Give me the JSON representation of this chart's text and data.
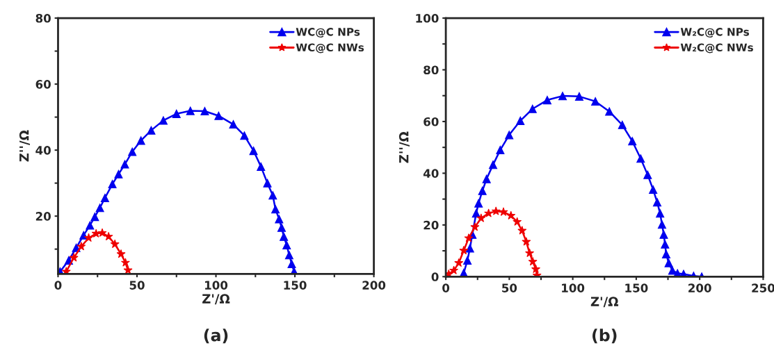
{
  "chart_data": [
    {
      "type": "line",
      "xlabel": "Z'/Ω",
      "ylabel": "Z''/Ω",
      "annotations": [
        "(a)"
      ],
      "xlim": [
        0,
        200
      ],
      "ylim": [
        2.5,
        80
      ],
      "xticks": [
        0,
        {
          "value": 25,
          "label": null
        },
        50,
        {
          "value": 75,
          "label": null
        },
        100,
        {
          "value": 125,
          "label": null
        },
        150,
        {
          "value": 175,
          "label": null
        },
        200
      ],
      "yticks": [
        {
          "value": 10,
          "label": null
        },
        20,
        {
          "value": 30,
          "label": null
        },
        40,
        {
          "value": 50,
          "label": null
        },
        60,
        {
          "value": 70,
          "label": null
        },
        80
      ],
      "grid": false,
      "legend": "top right",
      "line_style": "solid",
      "series": [
        {
          "name": "WC@C NPs",
          "color": "#0000ee",
          "marker": "triangle",
          "x": [
            1.3,
            6.8,
            11.5,
            16.2,
            20.2,
            23.3,
            26.5,
            29.7,
            34.4,
            38.3,
            42.3,
            47,
            52.5,
            59,
            66.7,
            75,
            83.8,
            92.9,
            101.7,
            111,
            118,
            123.8,
            128.5,
            132.6,
            136,
            137.7,
            140,
            141.6,
            143,
            144.8,
            146.4,
            148,
            149.5
          ],
          "values": [
            3.2,
            6.6,
            10.4,
            14.2,
            17.2,
            19.8,
            22.5,
            25.5,
            29.7,
            32.7,
            35.7,
            39.5,
            42.9,
            46,
            49,
            51,
            51.9,
            51.8,
            50.4,
            47.8,
            44.4,
            39.8,
            35,
            30,
            26.3,
            22.1,
            19.1,
            16.5,
            13.8,
            11.2,
            8.2,
            5.5,
            3.2
          ]
        },
        {
          "name": "WC@C NWs",
          "color": "#ee0000",
          "marker": "star",
          "x": [
            5.2,
            10,
            14.7,
            19.4,
            24.1,
            28,
            32,
            36,
            39.9,
            42.7,
            44.3
          ],
          "values": [
            3.2,
            7.4,
            10.8,
            13.4,
            14.7,
            14.9,
            13.8,
            11.5,
            8.5,
            5.9,
            3.6
          ]
        }
      ]
    },
    {
      "type": "line",
      "xlabel": "Z'/Ω",
      "ylabel": "Z''/Ω",
      "annotations": [
        "(b)"
      ],
      "xlim": [
        0,
        250
      ],
      "ylim": [
        0,
        100
      ],
      "xticks": [
        0,
        {
          "value": 25,
          "label": null
        },
        50,
        {
          "value": 75,
          "label": null
        },
        100,
        {
          "value": 125,
          "label": null
        },
        150,
        {
          "value": 175,
          "label": null
        },
        200,
        {
          "value": 225,
          "label": null
        },
        250
      ],
      "yticks": [
        0,
        {
          "value": 10,
          "label": null
        },
        20,
        {
          "value": 30,
          "label": null
        },
        40,
        {
          "value": 50,
          "label": null
        },
        60,
        {
          "value": 70,
          "label": null
        },
        80,
        {
          "value": 90,
          "label": null
        },
        100
      ],
      "grid": false,
      "legend": "top right",
      "line_style": "solid",
      "series": [
        {
          "name": "W₂C@C NPs",
          "color": "#0000ee",
          "marker": "triangle",
          "x": [
            14.1,
            17,
            19,
            20.9,
            22.9,
            23.9,
            25.8,
            28.8,
            32.1,
            37.2,
            42.9,
            49.9,
            58.7,
            68.3,
            79.9,
            92,
            105.1,
            117.8,
            128.8,
            139,
            146.9,
            153.5,
            159,
            163.3,
            166.5,
            168.8,
            170.3,
            171.7,
            172.7,
            173.6,
            175.6,
            178.5,
            182.5,
            187.3,
            195.2,
            201.6
          ],
          "values": [
            1.4,
            6.3,
            11,
            16.3,
            null,
            24.5,
            28.4,
            33.2,
            37.8,
            43.3,
            49,
            54.8,
            60.3,
            64.9,
            68.3,
            69.9,
            69.7,
            67.8,
            63.9,
            58.7,
            52.4,
            45.7,
            39.4,
            33.7,
            28.8,
            24.5,
            20.2,
            16.3,
            12.5,
            8.7,
            5.3,
            2.4,
            1.3,
            1,
            0.3,
            0
          ]
        },
        {
          "name": "W₂C@C NWs",
          "color": "#ee0000",
          "marker": "star",
          "x": [
            2.3,
            6.3,
            10.2,
            14.1,
            18,
            22.9,
            27.8,
            33.7,
            39.5,
            45.4,
            51.3,
            56.2,
            60.1,
            63.4,
            66,
            68.5,
            70.9,
            71.8
          ],
          "values": [
            1,
            2.4,
            5.3,
            10.1,
            14.9,
            19.2,
            22.6,
            24.5,
            25.3,
            25,
            23.6,
            21.2,
            17.8,
            13.5,
            9.1,
            5.8,
            2.9,
            0.5
          ]
        }
      ]
    }
  ]
}
